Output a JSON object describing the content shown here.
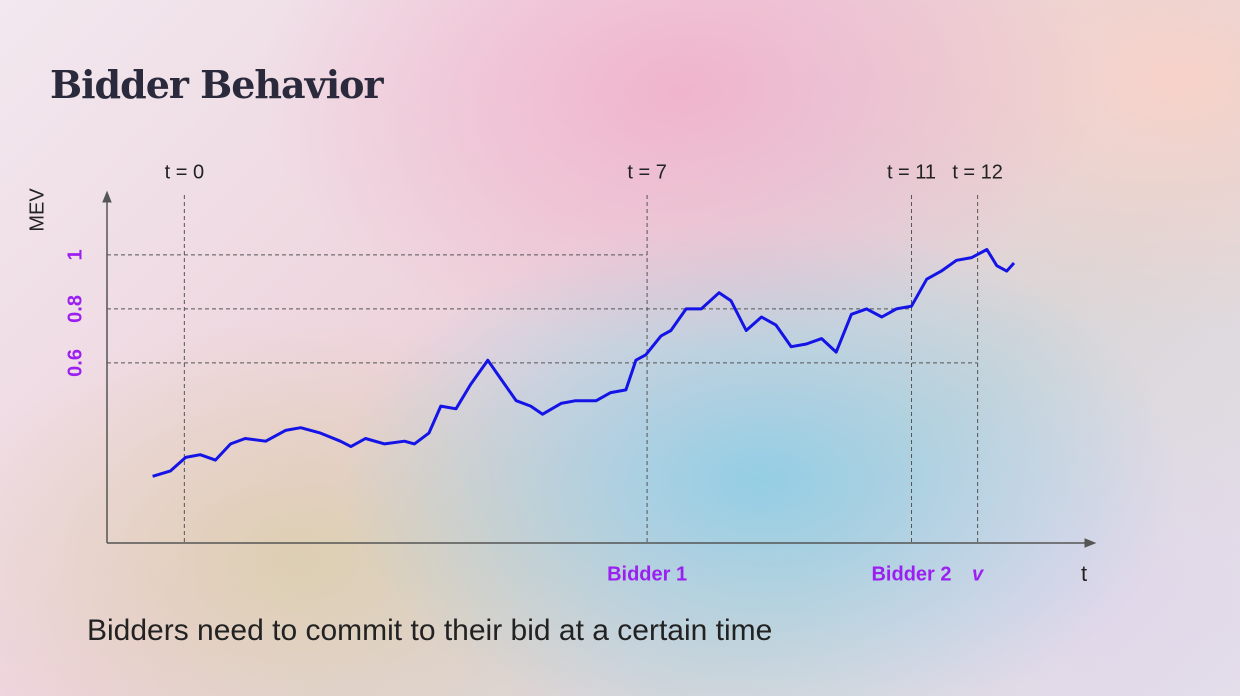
{
  "slide": {
    "title": "Bidder Behavior",
    "caption": "Bidders need to commit to their bid at a certain time"
  },
  "chart_data": {
    "type": "line",
    "ylabel": "MEV",
    "xlabel": "t",
    "xlim": [
      -1.17,
      13.7
    ],
    "ylim": [
      -0.067,
      1.222
    ],
    "yticks": [
      0.6,
      0.8,
      1
    ],
    "markers": [
      {
        "x": 0,
        "label": "t = 0"
      },
      {
        "x": 7,
        "label": "t = 7",
        "note": "Bidder 1"
      },
      {
        "x": 11,
        "label": "t = 11",
        "note": "Bidder 2"
      },
      {
        "x": 12,
        "label": "t = 12",
        "note": "v"
      }
    ],
    "x": [
      -0.48,
      -0.21,
      0.02,
      0.24,
      0.47,
      0.7,
      0.92,
      1.23,
      1.53,
      1.76,
      2.06,
      2.36,
      2.52,
      2.74,
      3.03,
      3.33,
      3.48,
      3.7,
      3.88,
      4.11,
      4.33,
      4.59,
      4.79,
      5.02,
      5.24,
      5.42,
      5.7,
      5.92,
      6.23,
      6.45,
      6.68,
      6.83,
      6.98,
      7.21,
      7.36,
      7.59,
      7.82,
      8.09,
      8.27,
      8.5,
      8.73,
      8.95,
      9.18,
      9.41,
      9.64,
      9.86,
      10.09,
      10.32,
      10.55,
      10.77,
      11.0,
      11.23,
      11.45,
      11.68,
      11.91,
      12.14,
      12.29,
      12.44,
      12.55
    ],
    "series": [
      {
        "color": "#1414e6",
        "values": [
          0.18,
          0.2,
          0.25,
          0.26,
          0.24,
          0.3,
          0.32,
          0.31,
          0.35,
          0.36,
          0.34,
          0.31,
          0.29,
          0.32,
          0.3,
          0.31,
          0.3,
          0.34,
          0.44,
          0.43,
          0.52,
          0.61,
          0.54,
          0.46,
          0.44,
          0.41,
          0.45,
          0.46,
          0.46,
          0.49,
          0.5,
          0.61,
          0.63,
          0.7,
          0.72,
          0.8,
          0.8,
          0.86,
          0.83,
          0.72,
          0.77,
          0.74,
          0.66,
          0.67,
          0.69,
          0.64,
          0.78,
          0.8,
          0.77,
          0.8,
          0.81,
          0.91,
          0.94,
          0.98,
          0.99,
          1.02,
          0.96,
          0.94,
          0.97
        ]
      }
    ],
    "tick_color": "#9b1ff0"
  }
}
